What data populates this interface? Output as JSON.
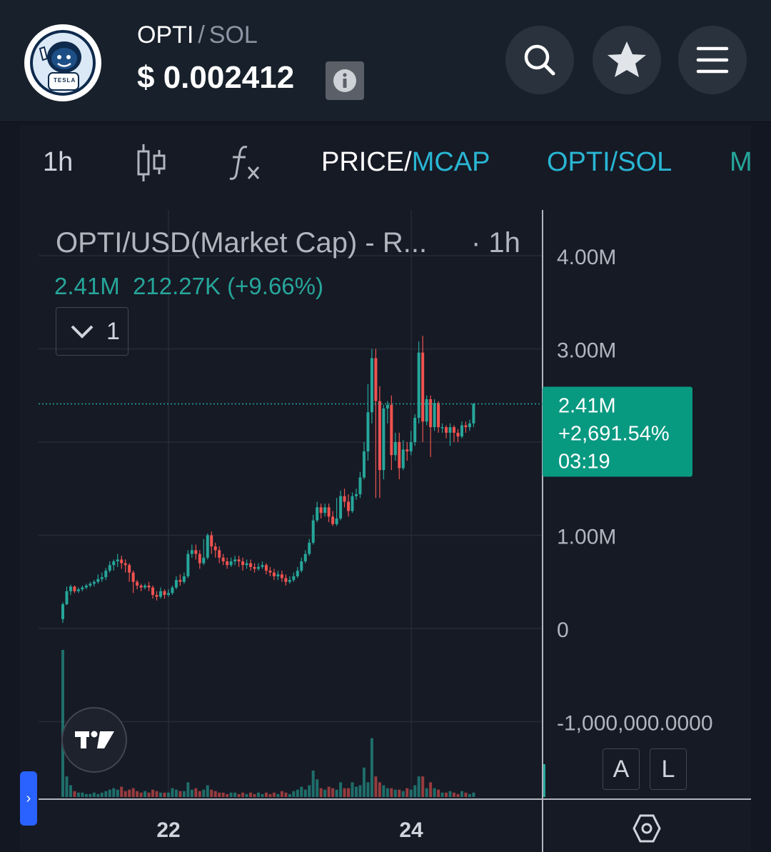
{
  "header": {
    "base": "OPTI",
    "separator": "/",
    "quote": "SOL",
    "price": "$ 0.002412",
    "logo_text": "TESLA",
    "icons": [
      "info-icon",
      "search-icon",
      "star-icon",
      "menu-icon"
    ]
  },
  "toolbar": {
    "interval": "1h",
    "price_label": "PRICE/",
    "mcap_label": "MCAP",
    "pair_label": "OPTI/SOL",
    "overflow_label": "M",
    "icons": [
      "candles-icon",
      "indicators-icon"
    ]
  },
  "legend": {
    "title": "OPTI/USD(Market Cap) - R...",
    "interval": "· 1h",
    "value": "2.41M",
    "change": "212.27K (+9.66%)",
    "collapse_count": "1"
  },
  "scale_buttons": {
    "auto": "A",
    "log": "L"
  },
  "colors": {
    "up": "#26a69a",
    "down": "#ef5350",
    "accent": "#29b6d4",
    "background": "#161a25",
    "header": "#18212b",
    "price_badge": "#089981"
  },
  "chart_data": {
    "type": "candlestick",
    "title": "OPTI/USD(Market Cap) - R...",
    "interval": "1h",
    "x_tick_labels": [
      "22",
      "24"
    ],
    "y_tick_labels": [
      "4.00M",
      "3.00M",
      "1.00M",
      "0",
      "-1,000,000.0000"
    ],
    "ylim": [
      -1100000,
      4500000
    ],
    "grid": true,
    "last_price": {
      "value": "2.41M",
      "change": "+2,691.54%",
      "countdown": "03:19"
    },
    "candles": [
      [
        0.1,
        0.26,
        0.06,
        0.28
      ],
      [
        0.26,
        0.4,
        0.25,
        0.45
      ],
      [
        0.4,
        0.45,
        0.36,
        0.47
      ],
      [
        0.45,
        0.4,
        0.38,
        0.46
      ],
      [
        0.4,
        0.42,
        0.38,
        0.44
      ],
      [
        0.42,
        0.44,
        0.4,
        0.46
      ],
      [
        0.44,
        0.46,
        0.42,
        0.48
      ],
      [
        0.46,
        0.48,
        0.44,
        0.5
      ],
      [
        0.48,
        0.5,
        0.45,
        0.52
      ],
      [
        0.5,
        0.53,
        0.48,
        0.58
      ],
      [
        0.53,
        0.55,
        0.5,
        0.6
      ],
      [
        0.55,
        0.62,
        0.52,
        0.65
      ],
      [
        0.62,
        0.68,
        0.6,
        0.72
      ],
      [
        0.68,
        0.72,
        0.62,
        0.74
      ],
      [
        0.72,
        0.74,
        0.66,
        0.8
      ],
      [
        0.74,
        0.7,
        0.64,
        0.78
      ],
      [
        0.7,
        0.68,
        0.6,
        0.74
      ],
      [
        0.68,
        0.6,
        0.5,
        0.7
      ],
      [
        0.6,
        0.5,
        0.38,
        0.62
      ],
      [
        0.5,
        0.46,
        0.42,
        0.52
      ],
      [
        0.46,
        0.44,
        0.4,
        0.48
      ],
      [
        0.44,
        0.46,
        0.42,
        0.48
      ],
      [
        0.46,
        0.44,
        0.4,
        0.5
      ],
      [
        0.44,
        0.36,
        0.32,
        0.46
      ],
      [
        0.36,
        0.34,
        0.3,
        0.4
      ],
      [
        0.34,
        0.4,
        0.32,
        0.44
      ],
      [
        0.4,
        0.36,
        0.32,
        0.42
      ],
      [
        0.36,
        0.38,
        0.34,
        0.42
      ],
      [
        0.38,
        0.44,
        0.36,
        0.46
      ],
      [
        0.44,
        0.52,
        0.42,
        0.56
      ],
      [
        0.52,
        0.5,
        0.46,
        0.58
      ],
      [
        0.5,
        0.56,
        0.48,
        0.6
      ],
      [
        0.56,
        0.8,
        0.54,
        0.84
      ],
      [
        0.8,
        0.84,
        0.76,
        0.9
      ],
      [
        0.84,
        0.8,
        0.74,
        0.9
      ],
      [
        0.8,
        0.7,
        0.64,
        0.84
      ],
      [
        0.7,
        0.76,
        0.68,
        0.96
      ],
      [
        0.76,
        1.0,
        0.74,
        1.02
      ],
      [
        1.0,
        0.88,
        0.8,
        1.04
      ],
      [
        0.88,
        0.84,
        0.76,
        0.92
      ],
      [
        0.84,
        0.76,
        0.7,
        0.88
      ],
      [
        0.76,
        0.72,
        0.68,
        0.8
      ],
      [
        0.72,
        0.68,
        0.64,
        0.76
      ],
      [
        0.68,
        0.72,
        0.66,
        0.76
      ],
      [
        0.72,
        0.74,
        0.68,
        0.78
      ],
      [
        0.74,
        0.72,
        0.66,
        0.78
      ],
      [
        0.72,
        0.68,
        0.62,
        0.76
      ],
      [
        0.68,
        0.7,
        0.64,
        0.74
      ],
      [
        0.7,
        0.66,
        0.62,
        0.74
      ],
      [
        0.66,
        0.64,
        0.6,
        0.7
      ],
      [
        0.64,
        0.66,
        0.62,
        0.7
      ],
      [
        0.66,
        0.68,
        0.64,
        0.72
      ],
      [
        0.68,
        0.62,
        0.58,
        0.7
      ],
      [
        0.62,
        0.6,
        0.56,
        0.66
      ],
      [
        0.6,
        0.56,
        0.52,
        0.64
      ],
      [
        0.56,
        0.58,
        0.52,
        0.62
      ],
      [
        0.58,
        0.54,
        0.5,
        0.62
      ],
      [
        0.54,
        0.5,
        0.46,
        0.58
      ],
      [
        0.5,
        0.52,
        0.48,
        0.56
      ],
      [
        0.52,
        0.56,
        0.5,
        0.6
      ],
      [
        0.56,
        0.62,
        0.54,
        0.66
      ],
      [
        0.62,
        0.72,
        0.6,
        0.76
      ],
      [
        0.72,
        0.8,
        0.7,
        0.84
      ],
      [
        0.8,
        0.92,
        0.78,
        0.96
      ],
      [
        0.92,
        1.16,
        0.9,
        1.22
      ],
      [
        1.16,
        1.3,
        1.14,
        1.36
      ],
      [
        1.3,
        1.24,
        1.18,
        1.34
      ],
      [
        1.24,
        1.3,
        1.2,
        1.34
      ],
      [
        1.3,
        1.2,
        1.14,
        1.34
      ],
      [
        1.2,
        1.12,
        1.1,
        1.26
      ],
      [
        1.12,
        1.18,
        1.1,
        1.4
      ],
      [
        1.18,
        1.42,
        1.16,
        1.48
      ],
      [
        1.42,
        1.36,
        1.3,
        1.5
      ],
      [
        1.36,
        1.26,
        1.2,
        1.44
      ],
      [
        1.26,
        1.42,
        1.24,
        1.46
      ],
      [
        1.42,
        1.44,
        1.38,
        1.5
      ],
      [
        1.44,
        1.62,
        1.4,
        1.68
      ],
      [
        1.62,
        1.9,
        1.6,
        2.0
      ],
      [
        1.9,
        2.32,
        1.8,
        2.62
      ],
      [
        2.32,
        2.9,
        2.2,
        3.0
      ],
      [
        2.9,
        2.44,
        1.4,
        3.0
      ],
      [
        2.44,
        1.7,
        1.4,
        2.6
      ],
      [
        1.7,
        2.36,
        1.6,
        2.4
      ],
      [
        2.36,
        2.4,
        2.2,
        2.44
      ],
      [
        2.4,
        1.86,
        1.7,
        2.5
      ],
      [
        1.86,
        2.0,
        1.8,
        2.1
      ],
      [
        2.0,
        1.72,
        1.6,
        2.1
      ],
      [
        1.72,
        1.92,
        1.7,
        2.02
      ],
      [
        1.92,
        1.9,
        1.8,
        2.0
      ],
      [
        1.9,
        2.0,
        1.86,
        2.12
      ],
      [
        2.0,
        2.26,
        1.96,
        2.3
      ],
      [
        2.26,
        2.96,
        2.2,
        3.08
      ],
      [
        2.96,
        2.22,
        2.0,
        3.14
      ],
      [
        2.22,
        2.46,
        2.18,
        2.5
      ],
      [
        2.46,
        2.16,
        1.84,
        2.5
      ],
      [
        2.16,
        2.42,
        2.12,
        2.46
      ],
      [
        2.42,
        2.16,
        2.1,
        2.44
      ],
      [
        2.16,
        2.16,
        2.1,
        2.2
      ],
      [
        2.16,
        2.1,
        2.04,
        2.18
      ],
      [
        2.1,
        2.16,
        1.96,
        2.2
      ],
      [
        2.16,
        2.1,
        2.0,
        2.18
      ],
      [
        2.1,
        2.06,
        2.0,
        2.14
      ],
      [
        2.06,
        2.18,
        2.04,
        2.22
      ],
      [
        2.18,
        2.16,
        2.1,
        2.22
      ],
      [
        2.16,
        2.2,
        2.12,
        2.24
      ],
      [
        2.2,
        2.41,
        2.16,
        2.42
      ]
    ],
    "volume": [
      1.0,
      0.14,
      0.08,
      0.04,
      0.03,
      0.03,
      0.02,
      0.02,
      0.03,
      0.02,
      0.03,
      0.04,
      0.05,
      0.06,
      0.05,
      0.07,
      0.04,
      0.05,
      0.06,
      0.04,
      0.03,
      0.04,
      0.03,
      0.05,
      0.04,
      0.03,
      0.03,
      0.03,
      0.06,
      0.05,
      0.04,
      0.04,
      0.1,
      0.05,
      0.06,
      0.04,
      0.05,
      0.08,
      0.05,
      0.04,
      0.03,
      0.03,
      0.02,
      0.03,
      0.03,
      0.02,
      0.03,
      0.02,
      0.03,
      0.02,
      0.03,
      0.02,
      0.03,
      0.02,
      0.03,
      0.02,
      0.04,
      0.03,
      0.02,
      0.04,
      0.05,
      0.07,
      0.05,
      0.08,
      0.18,
      0.12,
      0.06,
      0.05,
      0.07,
      0.06,
      0.05,
      0.1,
      0.06,
      0.06,
      0.1,
      0.07,
      0.08,
      0.2,
      0.1,
      0.4,
      0.14,
      0.1,
      0.08,
      0.06,
      0.06,
      0.05,
      0.05,
      0.04,
      0.06,
      0.05,
      0.08,
      0.14,
      0.14,
      0.06,
      0.1,
      0.06,
      0.05,
      0.03,
      0.03,
      0.04,
      0.03,
      0.02,
      0.04,
      0.03,
      0.02,
      0.03
    ]
  }
}
